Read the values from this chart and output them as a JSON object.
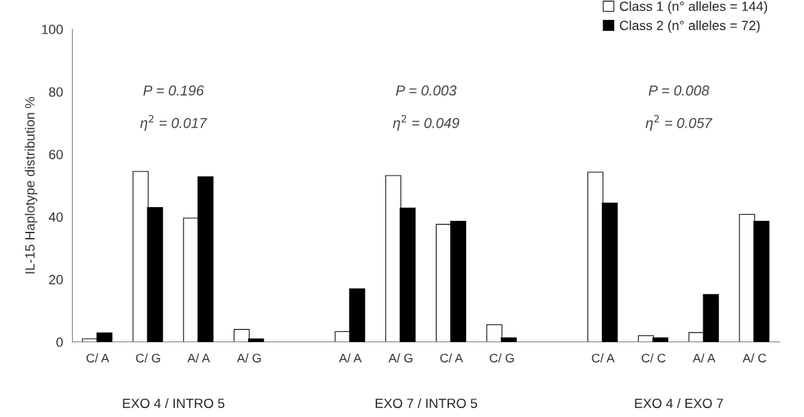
{
  "chart_data": {
    "type": "bar",
    "ylabel": "IL-15 Haplotype distribution %",
    "categories": [
      "C/ A",
      "C/ G",
      "A/ A",
      "A/ G",
      null,
      "A/ A",
      "A/ G",
      "C/ A",
      "C/ G",
      null,
      "C/ A",
      "C/ C",
      "A/ A",
      "A/ C"
    ],
    "series": [
      {
        "name": "Class 1 (n° alleles = 144)",
        "color": "#ffffff",
        "values": [
          1,
          54.5,
          39.6,
          4,
          null,
          3.3,
          53.2,
          37.6,
          5.5,
          null,
          54.3,
          2,
          3,
          40.8
        ]
      },
      {
        "name": "Class 2 (n° alleles = 72)",
        "color": "#000000",
        "values": [
          2.9,
          43,
          52.8,
          1,
          null,
          17,
          42.8,
          38.6,
          1.3,
          null,
          44.4,
          1.3,
          15.2,
          38.6
        ]
      }
    ],
    "ylim": [
      0,
      100
    ],
    "yticks": [
      0,
      20,
      40,
      60,
      80,
      100
    ],
    "grid": false,
    "legend": "top right",
    "annotations": [
      "P = 0.196",
      "η$^{2}$ = 0.017",
      "P = 0.003",
      "η$^{2}$ = 0.049",
      "P = 0.008",
      "η$^{2}$ = 0.057",
      "EXO 4 / INTRO 5",
      "EXO 7 / INTRO 5",
      "EXO 4 / EXO 7"
    ]
  }
}
